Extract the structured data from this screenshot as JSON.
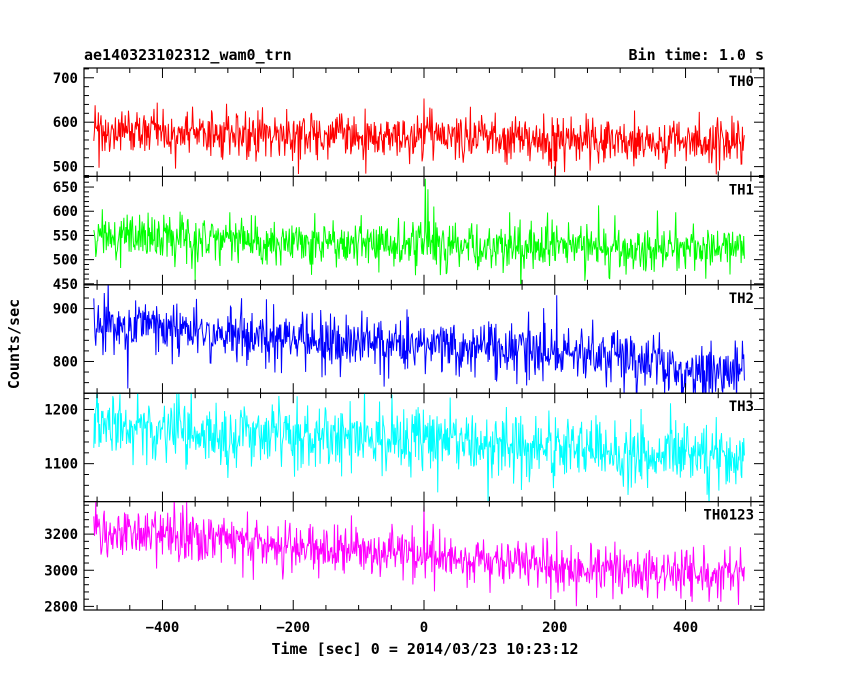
{
  "chart_data": {
    "type": "line",
    "title": "ae140323102312_wam0_trn",
    "subtitle": "Bin time: 1.0 s",
    "xlabel": "Time [sec] 0 = 2014/03/23 10:23:12",
    "ylabel": "Counts/sec",
    "xlim": [
      -520,
      520
    ],
    "xticks": [
      -400,
      -200,
      0,
      200,
      400
    ],
    "x_range": [
      -505,
      490
    ],
    "x_step": 1,
    "series": [
      {
        "name": "TH0",
        "color": "#ff0000",
        "ylim": [
          478,
          722
        ],
        "yticks": [
          500,
          600,
          700
        ],
        "baseline": [
          [
            -505,
            578
          ],
          [
            -250,
            572
          ],
          [
            0,
            568
          ],
          [
            250,
            560
          ],
          [
            490,
            555
          ]
        ],
        "noise_sd": 27,
        "spikes": [
          [
            0,
            100
          ],
          [
            5,
            85
          ],
          [
            12,
            55
          ],
          [
            22,
            40
          ]
        ]
      },
      {
        "name": "TH1",
        "color": "#00ff00",
        "ylim": [
          448,
          672
        ],
        "yticks": [
          450,
          500,
          550,
          600,
          650
        ],
        "baseline": [
          [
            -505,
            548
          ],
          [
            -250,
            540
          ],
          [
            0,
            533
          ],
          [
            250,
            525
          ],
          [
            490,
            520
          ]
        ],
        "noise_sd": 25,
        "spikes": [
          [
            2,
            110
          ],
          [
            6,
            85
          ],
          [
            15,
            60
          ]
        ]
      },
      {
        "name": "TH2",
        "color": "#0000ff",
        "ylim": [
          740,
          945
        ],
        "yticks": [
          800,
          900
        ],
        "baseline": [
          [
            -505,
            870
          ],
          [
            -250,
            845
          ],
          [
            0,
            832
          ],
          [
            250,
            812
          ],
          [
            360,
            798
          ],
          [
            375,
            780
          ],
          [
            490,
            782
          ]
        ],
        "noise_sd": 26,
        "spikes": []
      },
      {
        "name": "TH3",
        "color": "#00ffff",
        "ylim": [
          1030,
          1230
        ],
        "yticks": [
          1100,
          1200
        ],
        "baseline": [
          [
            -505,
            1165
          ],
          [
            -250,
            1155
          ],
          [
            0,
            1145
          ],
          [
            250,
            1125
          ],
          [
            490,
            1110
          ]
        ],
        "noise_sd": 30,
        "spikes": [
          [
            0,
            50
          ]
        ]
      },
      {
        "name": "TH0123",
        "color": "#ff00ff",
        "ylim": [
          2780,
          3380
        ],
        "yticks": [
          2800,
          3000,
          3200
        ],
        "baseline": [
          [
            -505,
            3230
          ],
          [
            -250,
            3140
          ],
          [
            0,
            3085
          ],
          [
            250,
            3010
          ],
          [
            490,
            2985
          ]
        ],
        "noise_sd": 70,
        "spikes": [
          [
            0,
            230
          ],
          [
            5,
            190
          ],
          [
            14,
            120
          ],
          [
            24,
            80
          ]
        ]
      }
    ]
  }
}
